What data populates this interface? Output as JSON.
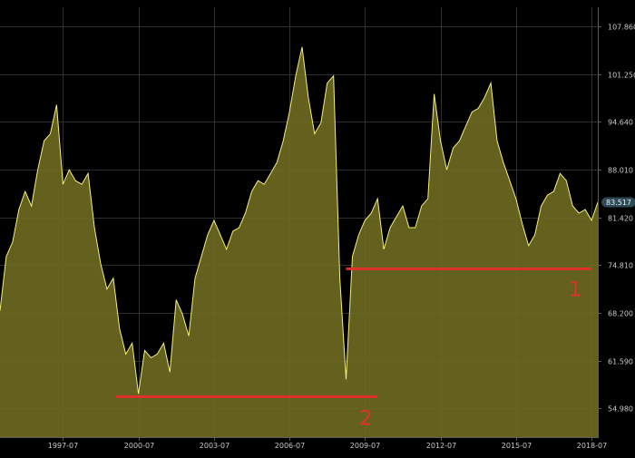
{
  "chart_data": {
    "type": "area",
    "title": "",
    "xlabel": "",
    "ylabel": "",
    "x_ticks": [
      "1997-07",
      "2000-07",
      "2003-07",
      "2006-07",
      "2009-07",
      "2012-07",
      "2015-07",
      "2018-07"
    ],
    "y_ticks": [
      "107.860",
      "101.250",
      "94.640",
      "88.010",
      "81.420",
      "74.810",
      "68.200",
      "61.590",
      "54.980"
    ],
    "ylim": [
      51.0,
      110.5
    ],
    "xlim": [
      1995.0,
      2018.75
    ],
    "current_value": "83.517",
    "grid": true,
    "colors": {
      "line": "#f4f07a",
      "fill": "#6f6c22",
      "annotation": "#e0302a",
      "badge": "#2e4a56"
    },
    "series": [
      {
        "x": [
          1995.0,
          1995.25,
          1995.5,
          1995.75,
          1996.0,
          1996.25,
          1996.5,
          1996.75,
          1997.0,
          1997.25,
          1997.5,
          1997.75,
          1998.0,
          1998.25,
          1998.5,
          1998.75,
          1999.0,
          1999.25,
          1999.5,
          1999.75,
          2000.0,
          2000.25,
          2000.5,
          2000.75,
          2001.0,
          2001.25,
          2001.5,
          2001.75,
          2002.0,
          2002.25,
          2002.5,
          2002.75,
          2003.0,
          2003.25,
          2003.5,
          2003.75,
          2004.0,
          2004.25,
          2004.5,
          2004.75,
          2005.0,
          2005.25,
          2005.5,
          2005.75,
          2006.0,
          2006.25,
          2006.5,
          2006.75,
          2007.0,
          2007.25,
          2007.5,
          2007.75,
          2008.0,
          2008.25,
          2008.5,
          2008.75,
          2009.0,
          2009.25,
          2009.5,
          2009.75,
          2010.0,
          2010.25,
          2010.5,
          2010.75,
          2011.0,
          2011.25,
          2011.5,
          2011.75,
          2012.0,
          2012.25,
          2012.5,
          2012.75,
          2013.0,
          2013.25,
          2013.5,
          2013.75,
          2014.0,
          2014.25,
          2014.5,
          2014.75,
          2015.0,
          2015.25,
          2015.5,
          2015.75,
          2016.0,
          2016.25,
          2016.5,
          2016.75,
          2017.0,
          2017.25,
          2017.5,
          2017.75,
          2018.0,
          2018.25,
          2018.5,
          2018.75
        ],
        "values": [
          68.5,
          76.0,
          78.0,
          82.5,
          85.0,
          83.0,
          88.0,
          92.0,
          93.0,
          97.0,
          86.0,
          88.0,
          86.5,
          86.0,
          87.5,
          80.0,
          75.0,
          71.5,
          73.0,
          66.0,
          62.5,
          64.0,
          57.0,
          63.0,
          62.0,
          62.5,
          64.0,
          60.0,
          70.0,
          68.0,
          65.0,
          73.0,
          76.0,
          79.0,
          81.0,
          79.0,
          77.0,
          79.5,
          80.0,
          82.0,
          85.0,
          86.5,
          86.0,
          87.5,
          89.0,
          92.0,
          96.0,
          101.0,
          105.0,
          98.0,
          93.0,
          94.5,
          100.0,
          101.0,
          73.0,
          59.0,
          76.0,
          79.0,
          81.0,
          82.0,
          84.0,
          77.0,
          80.0,
          81.5,
          83.0,
          80.0,
          80.0,
          83.0,
          84.0,
          98.5,
          92.0,
          88.0,
          91.0,
          92.0,
          94.0,
          96.0,
          96.5,
          98.0,
          100.0,
          92.0,
          89.0,
          86.5,
          84.0,
          80.5,
          77.5,
          79.0,
          83.0,
          84.5,
          85.0,
          87.5,
          86.5,
          83.0,
          82.0,
          82.5,
          81.0,
          83.5
        ]
      }
    ],
    "annotations": [
      {
        "label": "1",
        "y": 74.3,
        "x_start": 2008.75,
        "x_end": 2018.5
      },
      {
        "label": "2",
        "y": 56.6,
        "x_start": 1999.6,
        "x_end": 2010.0
      }
    ]
  }
}
